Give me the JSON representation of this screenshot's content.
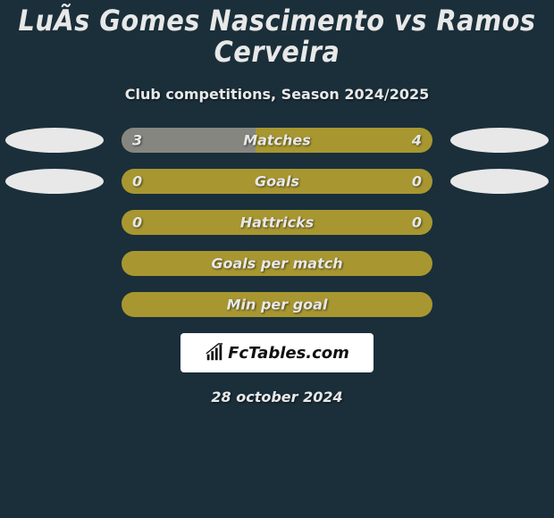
{
  "title": "LuÃ­s Gomes Nascimento vs Ramos Cerveira",
  "subtitle": "Club competitions, Season 2024/2025",
  "colors": {
    "background": "#1a2f3a",
    "bar_bg": "#a89730",
    "bar_left_fill": "#868681",
    "text": "#e8e8e8",
    "oval": "#e8e8e8",
    "watermark_bg": "#ffffff",
    "watermark_text": "#111111"
  },
  "oval": {
    "width": 110,
    "height": 28
  },
  "bars": [
    {
      "label": "Matches",
      "left": "3",
      "right": "4",
      "left_fill_pct": 43,
      "show_values": true,
      "show_left_oval": true,
      "show_right_oval": true
    },
    {
      "label": "Goals",
      "left": "0",
      "right": "0",
      "left_fill_pct": 0,
      "show_values": true,
      "show_left_oval": true,
      "show_right_oval": true
    },
    {
      "label": "Hattricks",
      "left": "0",
      "right": "0",
      "left_fill_pct": 0,
      "show_values": true,
      "show_left_oval": false,
      "show_right_oval": false
    },
    {
      "label": "Goals per match",
      "left": "",
      "right": "",
      "left_fill_pct": 0,
      "show_values": false,
      "show_left_oval": false,
      "show_right_oval": false
    },
    {
      "label": "Min per goal",
      "left": "",
      "right": "",
      "left_fill_pct": 0,
      "show_values": false,
      "show_left_oval": false,
      "show_right_oval": false
    }
  ],
  "watermark": {
    "text": "FcTables.com"
  },
  "date": "28 october 2024",
  "typography": {
    "title_fontsize": 32,
    "subtitle_fontsize": 16,
    "bar_label_fontsize": 16,
    "bar_value_fontsize": 16,
    "date_fontsize": 16
  }
}
